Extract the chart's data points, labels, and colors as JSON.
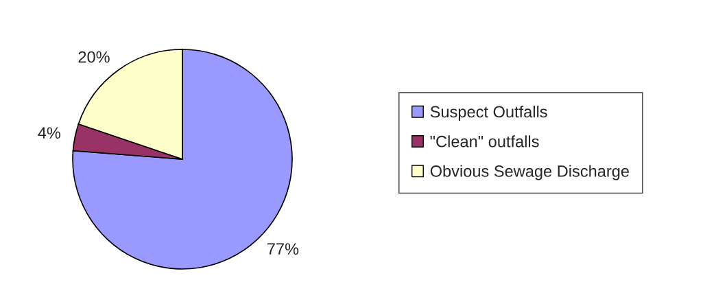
{
  "chart_data": {
    "type": "pie",
    "categories": [
      "Suspect Outfalls",
      "\"Clean\" outfalls",
      "Obvious Sewage Discharge"
    ],
    "values": [
      77,
      4,
      20
    ],
    "colors": [
      "#9999ff",
      "#993366",
      "#ffffcc"
    ],
    "value_labels": [
      "77%",
      "4%",
      "20%"
    ],
    "legend": "right"
  }
}
